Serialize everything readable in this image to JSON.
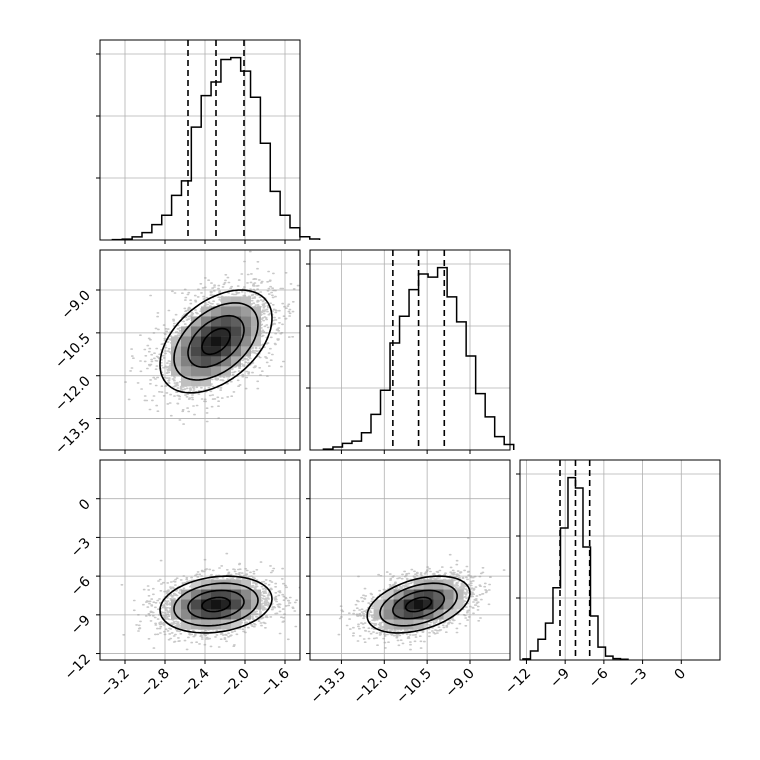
{
  "chart_data": {
    "type": "corner",
    "grid": true,
    "quantile_lines": "dashed",
    "parameters": [
      {
        "range": [
          -3.45,
          -1.45
        ],
        "ticks": [
          -3.2,
          -2.8,
          -2.4,
          -2.0,
          -1.6
        ],
        "tick_labels": [
          "−3.2",
          "−2.8",
          "−2.4",
          "−2.0",
          "−1.6"
        ],
        "quantiles": [
          -2.57,
          -2.29,
          -2.01
        ],
        "mean": -2.29,
        "sd": 0.28,
        "hist_density": [
          0.2,
          0.4,
          1.5,
          3.6,
          7.5,
          12.1,
          21.8,
          28.9,
          55.2,
          70.6,
          77.3,
          88.3,
          89.2,
          82.6,
          69.8,
          47.3,
          23.8,
          12.1,
          6.0,
          1.6,
          0.5
        ]
      },
      {
        "range": [
          -14.6,
          -7.6
        ],
        "ticks": [
          -13.5,
          -12.0,
          -10.5,
          -9.0
        ],
        "tick_labels": [
          "−13.5",
          "−12.0",
          "−10.5",
          "−9.0"
        ],
        "quantiles": [
          -11.7,
          -10.8,
          -9.9
        ],
        "mean": -10.8,
        "sd": 0.9,
        "hist_density": [
          0.3,
          1.1,
          2.4,
          3.2,
          6.2,
          12.8,
          21.5,
          38.5,
          48.1,
          57.7,
          63.3,
          62.2,
          65.6,
          55.1,
          46.1,
          33.8,
          20.3,
          11.9,
          4.8,
          2.0
        ]
      },
      {
        "range": [
          -12.5,
          3.0
        ],
        "ticks": [
          -12,
          -9,
          -6,
          -3,
          0
        ],
        "tick_labels": [
          "−12",
          "−9",
          "−6",
          "−3",
          "0"
        ],
        "quantiles": [
          -9.4,
          -8.2,
          -7.1
        ],
        "mean": -8.2,
        "sd": 1.1,
        "hist_density": [
          0.3,
          2.5,
          5.8,
          10.3,
          20.2,
          36.9,
          51.0,
          48.1,
          31.6,
          12.3,
          3.6,
          1.1,
          0.4,
          0.2
        ]
      }
    ],
    "pairs": [
      {
        "x_param": 0,
        "y_param": 1,
        "correlation": 0.45,
        "y_ticks": [
          -9.0,
          -10.5,
          -12.0,
          -13.5
        ],
        "y_tick_labels": [
          "−9.0",
          "−10.5",
          "−12.0",
          "−13.5"
        ]
      },
      {
        "x_param": 0,
        "y_param": 2,
        "correlation": 0.2,
        "y_ticks": [
          0,
          -3,
          -6,
          -9,
          -12
        ],
        "y_tick_labels": [
          "0",
          "−3",
          "−6",
          "−9",
          "−12"
        ]
      },
      {
        "x_param": 1,
        "y_param": 2,
        "correlation": 0.4
      }
    ],
    "contour_levels_sigma": [
      0.5,
      1.0,
      1.5,
      2.0
    ]
  },
  "colors": {
    "line": "#000000",
    "grid": "#b0b0b0",
    "scatter": "#9a9a9a",
    "frame": "#000000"
  }
}
